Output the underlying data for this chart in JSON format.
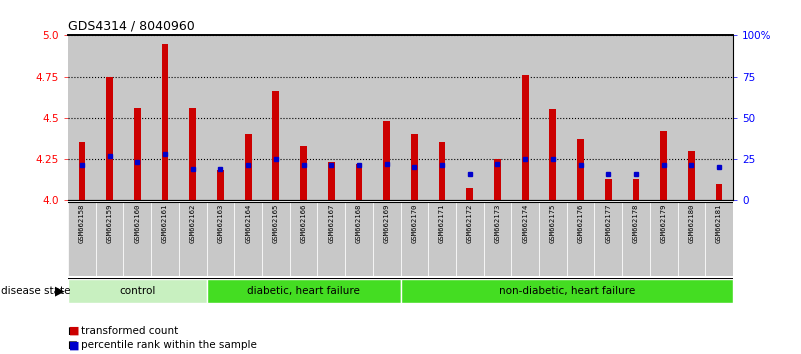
{
  "title": "GDS4314 / 8040960",
  "samples": [
    "GSM662158",
    "GSM662159",
    "GSM662160",
    "GSM662161",
    "GSM662162",
    "GSM662163",
    "GSM662164",
    "GSM662165",
    "GSM662166",
    "GSM662167",
    "GSM662168",
    "GSM662169",
    "GSM662170",
    "GSM662171",
    "GSM662172",
    "GSM662173",
    "GSM662174",
    "GSM662175",
    "GSM662176",
    "GSM662177",
    "GSM662178",
    "GSM662179",
    "GSM662180",
    "GSM662181"
  ],
  "transformed_count": [
    4.35,
    4.75,
    4.56,
    4.95,
    4.56,
    4.18,
    4.4,
    4.66,
    4.33,
    4.23,
    4.22,
    4.48,
    4.4,
    4.35,
    4.07,
    4.25,
    4.76,
    4.55,
    4.37,
    4.13,
    4.13,
    4.42,
    4.3,
    4.1
  ],
  "percentile_rank": [
    21,
    27,
    23,
    28,
    19,
    19,
    21,
    25,
    21,
    21,
    21,
    22,
    20,
    21,
    16,
    22,
    25,
    25,
    21,
    16,
    16,
    21,
    21,
    20
  ],
  "groups": [
    {
      "label": "control",
      "start": 0,
      "end": 5,
      "color": "#c8f0c0"
    },
    {
      "label": "diabetic, heart failure",
      "start": 5,
      "end": 12,
      "color": "#44dd22"
    },
    {
      "label": "non-diabetic, heart failure",
      "start": 12,
      "end": 24,
      "color": "#44dd22"
    }
  ],
  "ylim_left": [
    4.0,
    5.0
  ],
  "ylim_right": [
    0,
    100
  ],
  "yticks_left": [
    4.0,
    4.25,
    4.5,
    4.75,
    5.0
  ],
  "yticks_right": [
    0,
    25,
    50,
    75,
    100
  ],
  "bar_color": "#cc0000",
  "square_color": "#0000cc",
  "col_bg_color": "#c8c8c8",
  "plot_bg_color": "#ffffff",
  "legend_items": [
    "transformed count",
    "percentile rank within the sample"
  ],
  "disease_state_label": "disease state"
}
